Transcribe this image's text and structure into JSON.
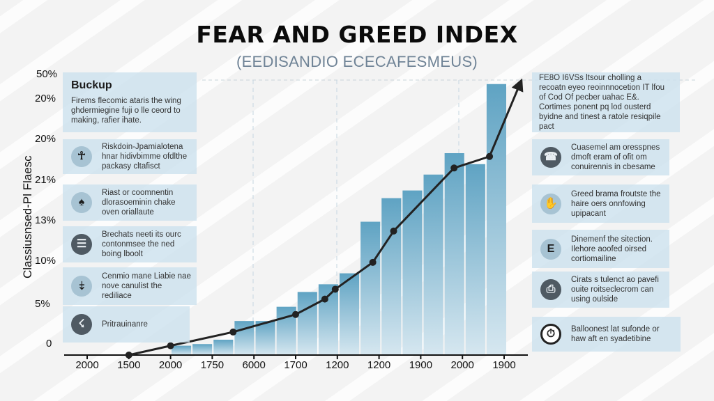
{
  "header": {
    "title": "FEAR AND GREED INDEX",
    "subtitle": "(EEDISANDIO ECECAFESMEUS)"
  },
  "left_panel": {
    "intro": {
      "heading": "Buckup",
      "text": "Firems flecomic ataris the wing ghdermiegine fuji o lle ceord to making, rafier ihate."
    },
    "items": [
      {
        "icon": "wheelchair-icon",
        "glyph": "☥",
        "style": "light",
        "text": "Riskdoin-Jpamialotena hnar hidivbimme ofdlthe packasy cltafisct"
      },
      {
        "icon": "spade-icon",
        "glyph": "♠",
        "style": "dark-glyph",
        "text": "Riast or coomnentin dlorasoeminin chake oven oriallaute"
      },
      {
        "icon": "menu-icon",
        "glyph": "☰",
        "style": "dark",
        "text": "Brechats neeti its ourc contonmsee the ned boing lboolt"
      },
      {
        "icon": "hook-icon",
        "glyph": "⤈",
        "style": "light",
        "text": "Cenmio mane Liabie nae nove canulist the rediliace"
      },
      {
        "icon": "runner-icon",
        "glyph": "☇",
        "style": "dark",
        "text": "Pritrauinanre"
      }
    ]
  },
  "right_panel": {
    "intro": {
      "text": "FE8O I6VSs ltsour cholling a recoatn eyeo reoinnnocetion IT lfou of Cod Of pecber uahac E&. Cortimes ponent pq lod ousterd byidne and tinest a ratole resiqpile pact"
    },
    "items": [
      {
        "icon": "phone-icon",
        "glyph": "☎",
        "style": "dark",
        "text": "Cuasemel am oresspnes dmoft eram of ofit om conuirennis in cbesame"
      },
      {
        "icon": "hand-icon",
        "glyph": "✋",
        "style": "light",
        "text": "Greed brama froutste the haire oers onnfowing upipacant"
      },
      {
        "icon": "letter-e-icon",
        "glyph": "E",
        "style": "light",
        "text": "Dinemenf the sitection. Ilehore aoofed oirsed cortiomailine"
      },
      {
        "icon": "document-icon",
        "glyph": "⎙",
        "style": "dark",
        "text": "Cirats s tulenct ao pavefi ouite roitseclecrom can using oulside"
      },
      {
        "icon": "clock-icon",
        "glyph": "⏱",
        "style": "ring",
        "text": "Balloonest lat sufonde or haw aft en syadetibine"
      }
    ]
  },
  "chart_data": {
    "type": "bar",
    "title": "FEAR AND GREED INDEX",
    "subtitle": "(EEDISANDIO ECECAFESMEUS)",
    "ylabel": "Classiusnsed-Pl Flaesc",
    "xlabel": "",
    "y_tick_labels": [
      "50%",
      "20%",
      "20%",
      "21%",
      "13%",
      "10%",
      "5%",
      "0"
    ],
    "x_tick_labels": [
      "2000",
      "1500",
      "2000",
      "1750",
      "6000",
      "1700",
      "1200",
      "1200",
      "1900",
      "2000",
      "1900"
    ],
    "ylim": [
      0,
      50
    ],
    "grid": "dashed vertical + top dashed line",
    "legend": "none",
    "bars": {
      "name": "Index bars",
      "color_top": "#5fa3c3",
      "color_bottom": "#d6e7f0",
      "values": [
        1.7,
        2.0,
        2.8,
        6.2,
        6.2,
        8.8,
        11.5,
        12.9,
        14.9,
        24.3,
        28.6,
        30.0,
        32.9,
        36.8,
        34.8,
        49.4
      ]
    },
    "line": {
      "name": "Trend",
      "color": "#222222",
      "points": [
        {
          "x_index": 1.0,
          "value": 0.0
        },
        {
          "x_index": 2.0,
          "value": 1.7
        },
        {
          "x_index": 3.5,
          "value": 4.2
        },
        {
          "x_index": 5.0,
          "value": 7.4
        },
        {
          "x_index": 5.7,
          "value": 10.2
        },
        {
          "x_index": 5.95,
          "value": 12.0
        },
        {
          "x_index": 6.85,
          "value": 16.9
        },
        {
          "x_index": 7.35,
          "value": 22.6
        },
        {
          "x_index": 8.8,
          "value": 34.1
        },
        {
          "x_index": 9.65,
          "value": 36.2
        },
        {
          "x_index": 10.4,
          "value": 49.8
        }
      ],
      "end_marker": "arrow"
    }
  }
}
